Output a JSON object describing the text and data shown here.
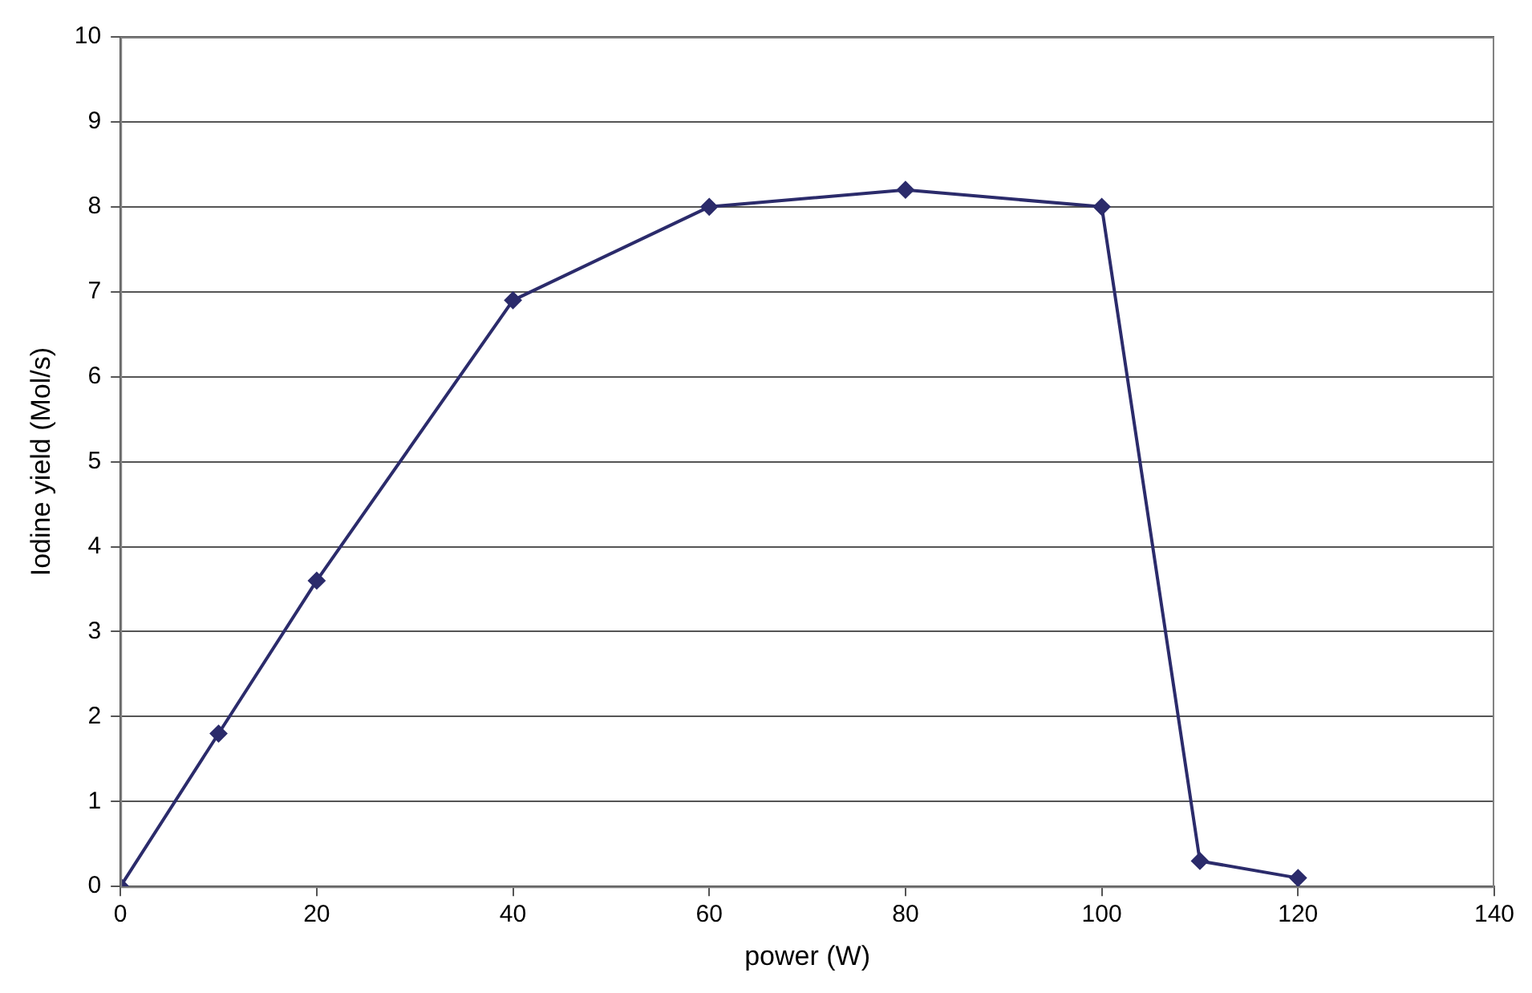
{
  "chart_data": {
    "type": "line",
    "xlabel": "power (W)",
    "ylabel": "Iodine yield (Mol/s)",
    "x": [
      0,
      10,
      20,
      40,
      60,
      80,
      100,
      110,
      120
    ],
    "series": [
      {
        "color": "#2b2b6b",
        "values": [
          0,
          1.8,
          3.6,
          6.9,
          8.0,
          8.2,
          8.0,
          0.3,
          0.1
        ]
      }
    ],
    "xlim": [
      0,
      140
    ],
    "xticks": [
      0,
      20,
      40,
      60,
      80,
      100,
      120,
      140
    ],
    "ylim": [
      0,
      10
    ],
    "yticks": [
      0,
      1,
      2,
      3,
      4,
      5,
      6,
      7,
      8,
      9,
      10
    ],
    "grid": "y",
    "legend": false,
    "marker": "diamond",
    "line_style": "solid"
  }
}
